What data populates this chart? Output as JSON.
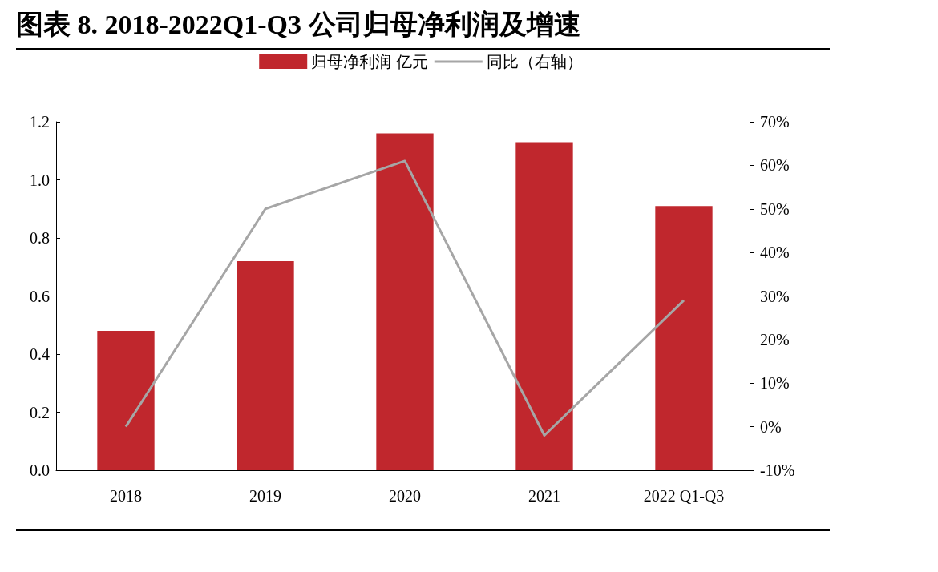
{
  "chart_data": {
    "type": "bar",
    "title": "图表 8.   2018-2022Q1-Q3 公司归母净利润及增速",
    "categories": [
      "2018",
      "2019",
      "2020",
      "2021",
      "2022 Q1-Q3"
    ],
    "series": [
      {
        "name": "归母净利润 亿元",
        "color": "#c0272d",
        "values": [
          0.48,
          0.72,
          1.16,
          1.13,
          0.91
        ]
      },
      {
        "name": "同比（右轴）",
        "type": "line",
        "axis": "y2",
        "color": "#a6a6a6",
        "values": [
          0,
          50,
          61,
          -2,
          29
        ]
      }
    ],
    "ylim": [
      0,
      1.2
    ],
    "yticks": [
      {
        "value": 0,
        "label": "0.0"
      },
      0.2,
      0.4,
      0.6,
      0.8,
      {
        "value": 1,
        "label": "1.0"
      },
      1.2
    ],
    "y2lim": [
      -10,
      70
    ],
    "y2ticks": [
      {
        "value": -10,
        "label": "-10%"
      },
      {
        "value": 0,
        "label": "0%"
      },
      {
        "value": 10,
        "label": "10%"
      },
      {
        "value": 20,
        "label": "20%"
      },
      {
        "value": 30,
        "label": "30%"
      },
      {
        "value": 40,
        "label": "40%"
      },
      {
        "value": 50,
        "label": "50%"
      },
      {
        "value": 60,
        "label": "60%"
      },
      {
        "value": 70,
        "label": "70%"
      }
    ],
    "legend": "top",
    "grid": false,
    "marker": "none"
  }
}
